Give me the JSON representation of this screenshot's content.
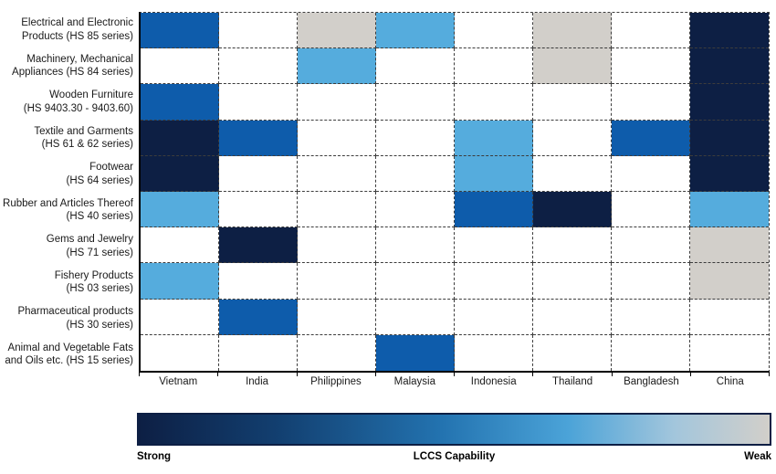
{
  "chart_data": {
    "type": "heatmap",
    "x_categories": [
      "Vietnam",
      "India",
      "Philippines",
      "Malaysia",
      "Indonesia",
      "Thailand",
      "Bangladesh",
      "China"
    ],
    "y_categories": [
      [
        "Electrical and Electronic",
        "Products (HS 85 series)"
      ],
      [
        "Machinery, Mechanical",
        "Appliances (HS 84 series)"
      ],
      [
        "Wooden Furniture",
        "(HS 9403.30 - 9403.60)"
      ],
      [
        "Textile and Garments",
        "(HS 61 & 62 series)"
      ],
      [
        "Footwear",
        "(HS 64 series)"
      ],
      [
        "Rubber and Articles Thereof",
        "(HS 40 series)"
      ],
      [
        "Gems and Jewelry",
        "(HS 71 series)"
      ],
      [
        "Fishery Products",
        "(HS 03 series)"
      ],
      [
        "Pharmaceutical products",
        "(HS 30 series)"
      ],
      [
        "Animal and Vegetable Fats",
        "and Oils etc. (HS 15 series)"
      ]
    ],
    "value_scale": [
      "strong",
      "medium",
      "light",
      "weak"
    ],
    "scale_colors": {
      "strong": "#0d1f44",
      "medium": "#0e5cab",
      "light": "#55acdd",
      "weak": "#d2cfca",
      "none": "#ffffff"
    },
    "cells": [
      [
        "medium",
        null,
        "weak",
        "light",
        null,
        "weak",
        null,
        "strong"
      ],
      [
        null,
        null,
        "light",
        null,
        null,
        "weak",
        null,
        "strong"
      ],
      [
        "medium",
        null,
        null,
        null,
        null,
        null,
        null,
        "strong"
      ],
      [
        "strong",
        "medium",
        null,
        null,
        "light",
        null,
        "medium",
        "strong"
      ],
      [
        "strong",
        null,
        null,
        null,
        "light",
        null,
        null,
        "strong"
      ],
      [
        "light",
        null,
        null,
        null,
        "medium",
        "strong",
        null,
        "light"
      ],
      [
        null,
        "strong",
        null,
        null,
        null,
        null,
        null,
        "weak"
      ],
      [
        "light",
        null,
        null,
        null,
        null,
        null,
        null,
        "weak"
      ],
      [
        null,
        "medium",
        null,
        null,
        null,
        null,
        null,
        null
      ],
      [
        null,
        null,
        null,
        "medium",
        null,
        null,
        null,
        null
      ]
    ],
    "legend": {
      "left_label": "Strong",
      "title": "LCCS Capability",
      "right_label": "Weak",
      "gradient": [
        "#0d1f44 0%",
        "#123f70 22%",
        "#2373b0 48%",
        "#4ba3d8 68%",
        "#a3c6dc 85%",
        "#d2cfca 100%"
      ],
      "border_color": "#0d1f44"
    },
    "grid": {
      "line_style": "dashed",
      "outer_left_bottom": "solid"
    }
  }
}
